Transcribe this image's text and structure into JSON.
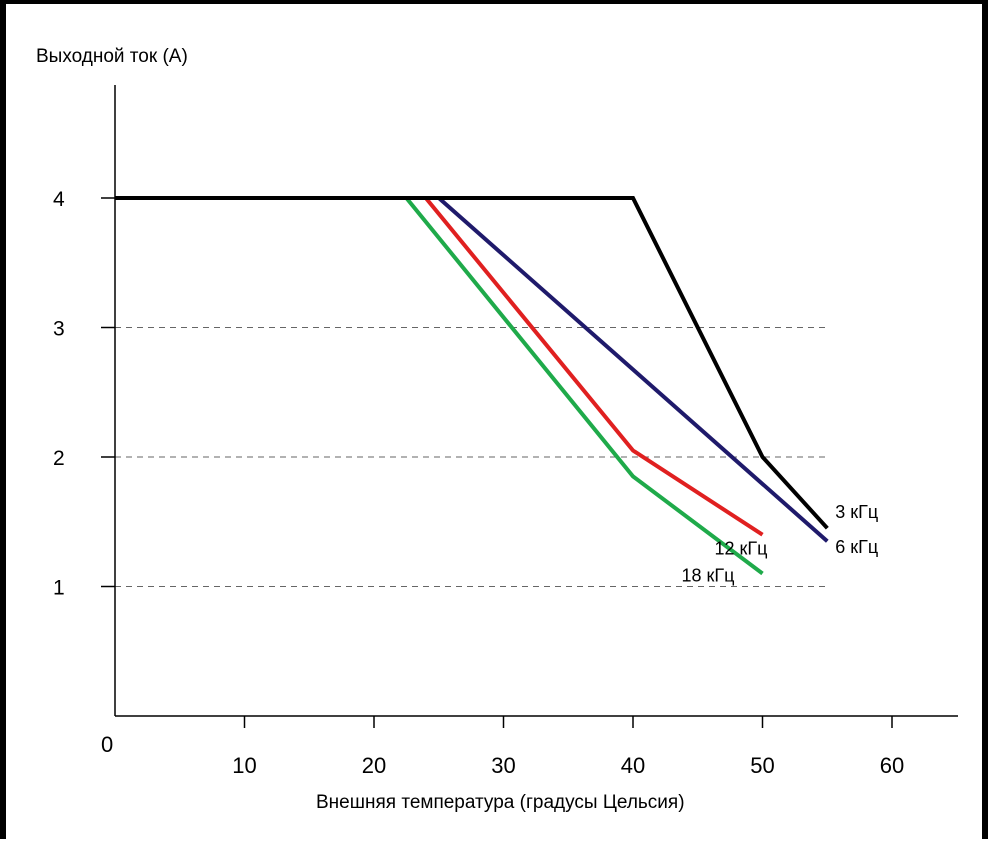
{
  "chart_data": {
    "type": "line",
    "title": "",
    "ylabel": "Выходной ток (А)",
    "xlabel": "Внешняя температура (градусы Цельсия)",
    "xlim": [
      0,
      64
    ],
    "ylim": [
      0,
      4.9
    ],
    "x_ticks": [
      0,
      10,
      20,
      30,
      40,
      50,
      60
    ],
    "y_ticks": [
      1,
      2,
      3,
      4
    ],
    "grid": "dashed horizontal lines at 1, 2, 3",
    "series": [
      {
        "name": "3 кГц",
        "color": "#000000",
        "points": [
          [
            0,
            4.0
          ],
          [
            40,
            4.0
          ],
          [
            50,
            2.0
          ],
          [
            55,
            1.45
          ]
        ]
      },
      {
        "name": "6 кГц",
        "color": "#1f1a6b",
        "points": [
          [
            0,
            4.0
          ],
          [
            25,
            4.0
          ],
          [
            55,
            1.35
          ]
        ]
      },
      {
        "name": "12 кГц",
        "color": "#e02020",
        "points": [
          [
            0,
            4.0
          ],
          [
            24,
            4.0
          ],
          [
            40,
            2.05
          ],
          [
            50,
            1.4
          ]
        ]
      },
      {
        "name": "18 кГц",
        "color": "#1faa4a",
        "points": [
          [
            0,
            4.0
          ],
          [
            22.5,
            4.0
          ],
          [
            40,
            1.85
          ],
          [
            50,
            1.1
          ]
        ]
      }
    ]
  }
}
